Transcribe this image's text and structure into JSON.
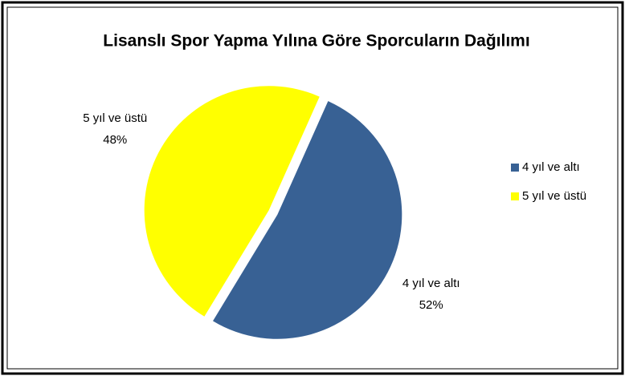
{
  "chart_data": {
    "type": "pie",
    "title": "Lisanslı Spor Yapma Yılına Göre Sporcuların Dağılımı",
    "categories": [
      "4 yıl ve altı",
      "5 yıl ve üstü"
    ],
    "values": [
      52,
      48
    ],
    "value_labels": [
      "52%",
      "48%"
    ],
    "colors": [
      "#386194",
      "#ffff00"
    ],
    "legend": "right"
  }
}
